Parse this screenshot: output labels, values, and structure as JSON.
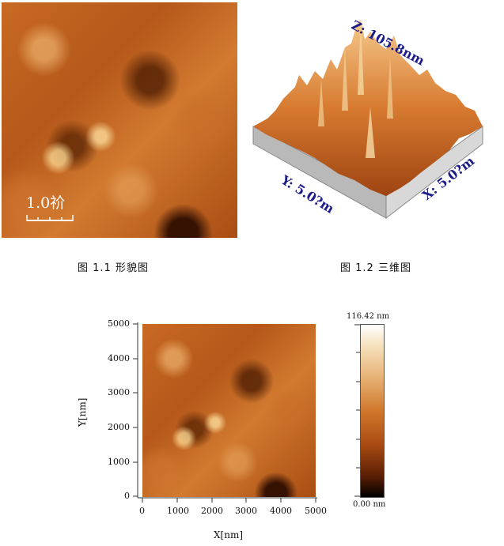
{
  "figure1": {
    "scalebar_label": "1.0祄",
    "caption": "图 1.1  形貌图"
  },
  "figure2": {
    "z_label": "Z: 105.8nm",
    "y_label": "Y: 5.0?m",
    "x_label": "X: 5.0?m",
    "caption": "图 1.2 三维图"
  },
  "figure3": {
    "xlabel": "X[nm]",
    "ylabel": "Y[nm]",
    "x_ticks": [
      "0",
      "1000",
      "2000",
      "3000",
      "4000",
      "5000"
    ],
    "y_ticks": [
      "0",
      "1000",
      "2000",
      "3000",
      "4000",
      "5000"
    ],
    "colorbar_max": "116.42 nm",
    "colorbar_min": "0.00 nm"
  }
}
